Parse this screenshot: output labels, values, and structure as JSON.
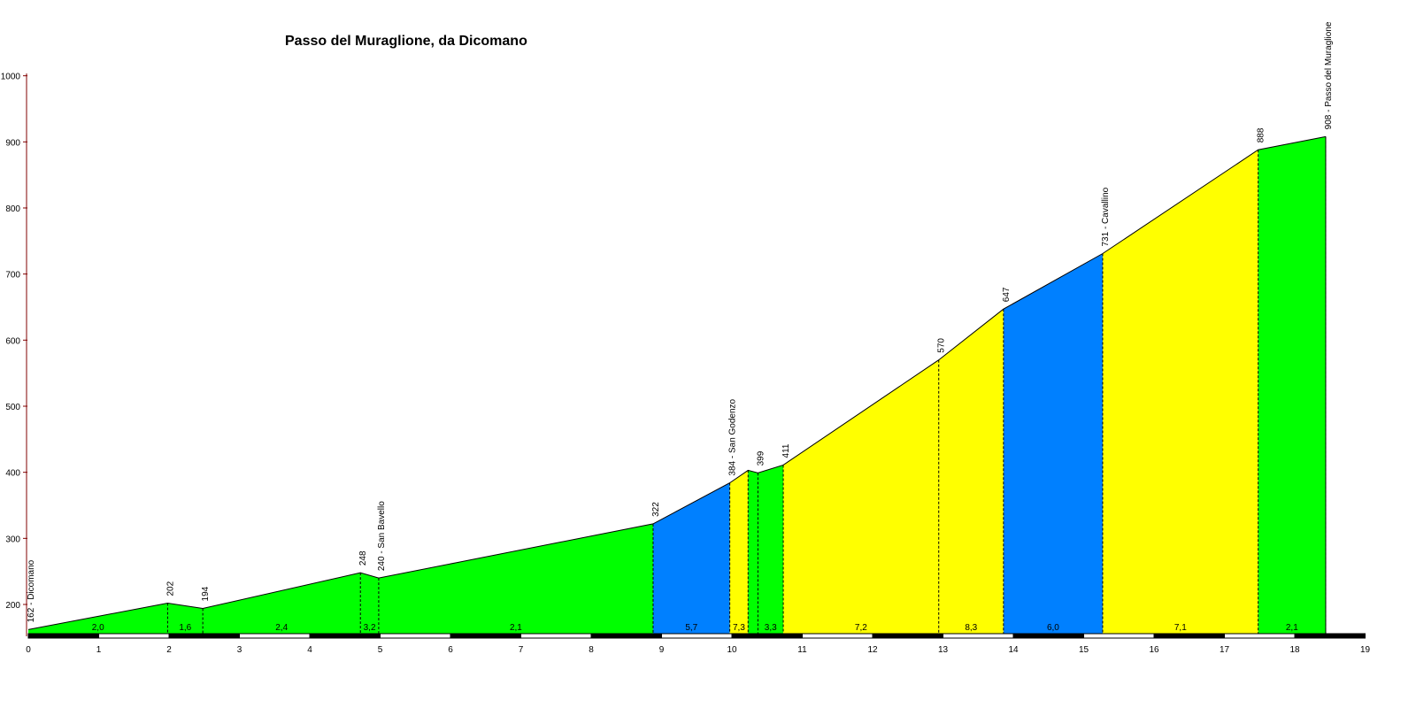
{
  "chart_data": {
    "type": "area",
    "title": "Passo del Muraglione, da Dicomano",
    "xlabel": "",
    "ylabel": "",
    "xlim": [
      0,
      19
    ],
    "ylim": [
      150,
      1000
    ],
    "x_ticks": [
      0,
      1,
      2,
      3,
      4,
      5,
      6,
      7,
      8,
      9,
      10,
      11,
      12,
      13,
      14,
      15,
      16,
      17,
      18,
      19
    ],
    "y_ticks": [
      200,
      300,
      400,
      500,
      600,
      700,
      800,
      900,
      1000
    ],
    "points": [
      {
        "x": 0.0,
        "y": 162,
        "label": "162 - Dicomano"
      },
      {
        "x": 1.98,
        "y": 202,
        "label": "202"
      },
      {
        "x": 2.48,
        "y": 194,
        "label": "194"
      },
      {
        "x": 4.72,
        "y": 248,
        "label": "248"
      },
      {
        "x": 4.98,
        "y": 240,
        "label": "240 - San Bavello"
      },
      {
        "x": 8.88,
        "y": 322,
        "label": "322"
      },
      {
        "x": 9.97,
        "y": 384,
        "label": "384 - San Godenzo"
      },
      {
        "x": 10.23,
        "y": 403,
        "label": ""
      },
      {
        "x": 10.37,
        "y": 399,
        "label": "399"
      },
      {
        "x": 10.73,
        "y": 411,
        "label": "411"
      },
      {
        "x": 12.94,
        "y": 570,
        "label": "570"
      },
      {
        "x": 13.86,
        "y": 647,
        "label": "647"
      },
      {
        "x": 15.27,
        "y": 731,
        "label": "731 - Cavallino"
      },
      {
        "x": 17.48,
        "y": 888,
        "label": "888"
      },
      {
        "x": 18.44,
        "y": 908,
        "label": "908 - Passo del Muraglione"
      }
    ],
    "segments": [
      {
        "from": 0.0,
        "to": 1.98,
        "gradient": "2,0",
        "color": "#00ff00"
      },
      {
        "from": 1.98,
        "to": 2.48,
        "gradient": "1,6",
        "color": "#00ff00"
      },
      {
        "from": 2.48,
        "to": 4.72,
        "gradient": "2,4",
        "color": "#00ff00"
      },
      {
        "from": 4.72,
        "to": 4.98,
        "gradient": "3,2",
        "color": "#00ff00"
      },
      {
        "from": 4.98,
        "to": 8.88,
        "gradient": "2,1",
        "color": "#00ff00"
      },
      {
        "from": 8.88,
        "to": 9.97,
        "gradient": "5,7",
        "color": "#0080ff"
      },
      {
        "from": 9.97,
        "to": 10.23,
        "gradient": "7,3",
        "color": "#ffff00"
      },
      {
        "from": 10.23,
        "to": 10.37,
        "gradient": "",
        "color": "#00ff00"
      },
      {
        "from": 10.37,
        "to": 10.73,
        "gradient": "3,3",
        "color": "#00ff00"
      },
      {
        "from": 10.73,
        "to": 12.94,
        "gradient": "7,2",
        "color": "#ffff00"
      },
      {
        "from": 12.94,
        "to": 13.86,
        "gradient": "8,3",
        "color": "#ffff00"
      },
      {
        "from": 13.86,
        "to": 15.27,
        "gradient": "6,0",
        "color": "#0080ff"
      },
      {
        "from": 15.27,
        "to": 17.48,
        "gradient": "7,1",
        "color": "#ffff00"
      },
      {
        "from": 17.48,
        "to": 18.44,
        "gradient": "2,1",
        "color": "#00ff00"
      }
    ],
    "grid": false,
    "legend": "none"
  }
}
